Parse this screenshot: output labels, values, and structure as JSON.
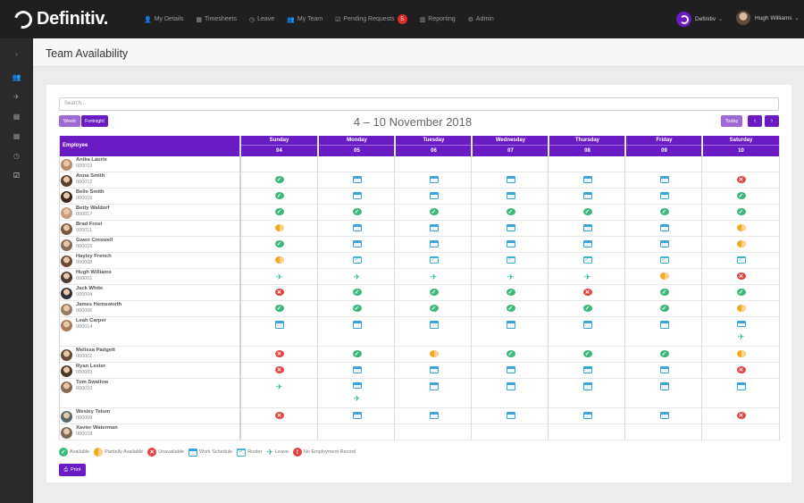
{
  "app": {
    "logo_text": "Definitiv."
  },
  "nav": [
    {
      "icon": "user-icon",
      "glyph": "👤",
      "label": "My Details"
    },
    {
      "icon": "timesheet-icon",
      "glyph": "▦",
      "label": "Timesheets"
    },
    {
      "icon": "leave-icon",
      "glyph": "◷",
      "label": "Leave"
    },
    {
      "icon": "team-icon",
      "glyph": "👥",
      "label": "My Team"
    },
    {
      "icon": "pending-icon",
      "glyph": "☑",
      "label": "Pending Requests",
      "badge": "5"
    },
    {
      "icon": "reporting-icon",
      "glyph": "▥",
      "label": "Reporting"
    },
    {
      "icon": "admin-icon",
      "glyph": "⚙",
      "label": "Admin"
    }
  ],
  "org": {
    "name": "Definitiv"
  },
  "user": {
    "name": "Hugh Williams"
  },
  "sidebar": [
    {
      "icon": "expand-icon",
      "glyph": "›"
    },
    {
      "icon": "team-icon",
      "glyph": "👥"
    },
    {
      "icon": "plane-icon",
      "glyph": "✈"
    },
    {
      "icon": "calendar-icon",
      "glyph": "▦"
    },
    {
      "icon": "calendar-icon",
      "glyph": "▦"
    },
    {
      "icon": "clock-icon",
      "glyph": "◷"
    },
    {
      "icon": "calendar-check-icon",
      "glyph": "☑",
      "active": true
    }
  ],
  "page": {
    "title": "Team Availability"
  },
  "search": {
    "placeholder": "Search..."
  },
  "view_buttons": {
    "week": "Week",
    "fortnight": "Fortnight",
    "today": "Today",
    "prev": "‹",
    "next": "›"
  },
  "date_range": "4 – 10 November 2018",
  "grid": {
    "employee_header": "Employee",
    "days": [
      {
        "name": "Sunday",
        "date": "04"
      },
      {
        "name": "Monday",
        "date": "05"
      },
      {
        "name": "Tuesday",
        "date": "06"
      },
      {
        "name": "Wednesday",
        "date": "07"
      },
      {
        "name": "Thursday",
        "date": "08"
      },
      {
        "name": "Friday",
        "date": "09"
      },
      {
        "name": "Saturday",
        "date": "10"
      }
    ],
    "rows": [
      {
        "name": "Anika Laurie",
        "number": "000019",
        "cells": [
          [],
          [],
          [],
          [],
          [],
          [],
          []
        ]
      },
      {
        "name": "Anna Smith",
        "number": "000012",
        "cells": [
          [
            "available"
          ],
          [
            "schedule"
          ],
          [
            "schedule"
          ],
          [
            "schedule"
          ],
          [
            "schedule"
          ],
          [
            "schedule"
          ],
          [
            "unavailable"
          ]
        ]
      },
      {
        "name": "Belle Smith",
        "number": "000016",
        "cells": [
          [
            "available"
          ],
          [
            "schedule"
          ],
          [
            "schedule"
          ],
          [
            "schedule"
          ],
          [
            "schedule"
          ],
          [
            "schedule"
          ],
          [
            "available"
          ]
        ]
      },
      {
        "name": "Betty Waldorf",
        "number": "000017",
        "cells": [
          [
            "available"
          ],
          [
            "available"
          ],
          [
            "available"
          ],
          [
            "available"
          ],
          [
            "available"
          ],
          [
            "available"
          ],
          [
            "available"
          ]
        ]
      },
      {
        "name": "Brad Frost",
        "number": "000011",
        "cells": [
          [
            "partial"
          ],
          [
            "schedule"
          ],
          [
            "schedule"
          ],
          [
            "schedule"
          ],
          [
            "schedule"
          ],
          [
            "schedule"
          ],
          [
            "partial"
          ]
        ]
      },
      {
        "name": "Gwen Creswell",
        "number": "000015",
        "cells": [
          [
            "available"
          ],
          [
            "schedule"
          ],
          [
            "schedule"
          ],
          [
            "schedule"
          ],
          [
            "schedule"
          ],
          [
            "schedule"
          ],
          [
            "partial"
          ]
        ]
      },
      {
        "name": "Hayley French",
        "number": "000008",
        "cells": [
          [
            "partial"
          ],
          [
            "roster"
          ],
          [
            "roster"
          ],
          [
            "roster"
          ],
          [
            "roster"
          ],
          [
            "roster"
          ],
          [
            "roster"
          ]
        ]
      },
      {
        "name": "Hugh Williams",
        "number": "000001",
        "cells": [
          [
            "leave"
          ],
          [
            "leave"
          ],
          [
            "leave"
          ],
          [
            "leave"
          ],
          [
            "leave"
          ],
          [
            "partial"
          ],
          [
            "unavailable"
          ]
        ]
      },
      {
        "name": "Jack White",
        "number": "000004",
        "cells": [
          [
            "unavailable"
          ],
          [
            "available"
          ],
          [
            "available"
          ],
          [
            "available"
          ],
          [
            "unavailable"
          ],
          [
            "available"
          ],
          [
            "available"
          ]
        ]
      },
      {
        "name": "James Hemsworth",
        "number": "000006",
        "cells": [
          [
            "available"
          ],
          [
            "available"
          ],
          [
            "available"
          ],
          [
            "available"
          ],
          [
            "available"
          ],
          [
            "available"
          ],
          [
            "partial"
          ]
        ]
      },
      {
        "name": "Leah Carper",
        "number": "000014",
        "cells": [
          [
            "schedule"
          ],
          [
            "schedule"
          ],
          [
            "schedule"
          ],
          [
            "schedule"
          ],
          [
            "schedule"
          ],
          [
            "schedule"
          ],
          [
            "schedule",
            "leave"
          ]
        ]
      },
      {
        "name": "Melissa Padgett",
        "number": "000002",
        "cells": [
          [
            "unavailable"
          ],
          [
            "available"
          ],
          [
            "partial"
          ],
          [
            "available"
          ],
          [
            "available"
          ],
          [
            "available"
          ],
          [
            "partial"
          ]
        ]
      },
      {
        "name": "Ryan Lester",
        "number": "000003",
        "cells": [
          [
            "unavailable"
          ],
          [
            "schedule"
          ],
          [
            "schedule"
          ],
          [
            "schedule"
          ],
          [
            "schedule"
          ],
          [
            "schedule"
          ],
          [
            "unavailable"
          ]
        ]
      },
      {
        "name": "Tom Swallow",
        "number": "000010",
        "cells": [
          [
            "leave"
          ],
          [
            "schedule",
            "leave"
          ],
          [
            "schedule"
          ],
          [
            "schedule"
          ],
          [
            "schedule"
          ],
          [
            "schedule"
          ],
          [
            "schedule"
          ]
        ]
      },
      {
        "name": "Wesley Telum",
        "number": "000009",
        "cells": [
          [
            "unavailable"
          ],
          [
            "schedule"
          ],
          [
            "schedule"
          ],
          [
            "schedule"
          ],
          [
            "schedule"
          ],
          [
            "schedule"
          ],
          [
            "unavailable"
          ]
        ]
      },
      {
        "name": "Xavier Waterman",
        "number": "000018",
        "cells": [
          [],
          [],
          [],
          [],
          [],
          [],
          []
        ]
      }
    ]
  },
  "legend": [
    {
      "type": "available",
      "label": "Available"
    },
    {
      "type": "partial",
      "label": "Partially Available"
    },
    {
      "type": "unavailable",
      "label": "Unavailable"
    },
    {
      "type": "schedule",
      "label": "Work Schedule"
    },
    {
      "type": "roster",
      "label": "Roster"
    },
    {
      "type": "leave",
      "label": "Leave"
    },
    {
      "type": "norecord",
      "label": "No Employment Record"
    }
  ],
  "print_button": "Print",
  "colors": {
    "primary": "#6a1bc3",
    "primary_light": "#a06ad6",
    "available": "#3db87b",
    "unavailable": "#e24444",
    "partial": "#f5a623",
    "schedule": "#3aa4db",
    "leave": "#2bb5a0"
  }
}
